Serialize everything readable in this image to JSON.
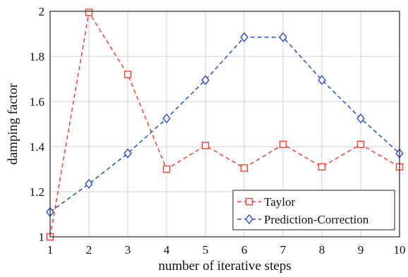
{
  "chart_data": {
    "type": "line",
    "x": [
      1,
      2,
      3,
      4,
      5,
      6,
      7,
      8,
      9,
      10
    ],
    "series": [
      {
        "name": "Taylor",
        "values": [
          1.0,
          1.995,
          1.72,
          1.3,
          1.405,
          1.305,
          1.41,
          1.31,
          1.41,
          1.31
        ],
        "color": "#ff3b30",
        "marker": "square",
        "line": "dashed"
      },
      {
        "name": "Prediction-Correction",
        "values": [
          1.11,
          1.235,
          1.37,
          1.525,
          1.695,
          1.885,
          1.885,
          1.695,
          1.525,
          1.37
        ],
        "color": "#2a4cd0",
        "marker": "diamond",
        "line": "dashed"
      }
    ],
    "xlabel": "number of iterative steps",
    "ylabel": "damping factor",
    "xlim": [
      1,
      10
    ],
    "ylim": [
      1,
      2
    ],
    "xticks": [
      "1",
      "2",
      "3",
      "4",
      "5",
      "6",
      "7",
      "8",
      "9",
      "10"
    ],
    "yticks": [
      "1",
      "1.2",
      "1.4",
      "1.6",
      "1.8",
      "2"
    ],
    "grid": true,
    "legend": "bottom-right"
  }
}
